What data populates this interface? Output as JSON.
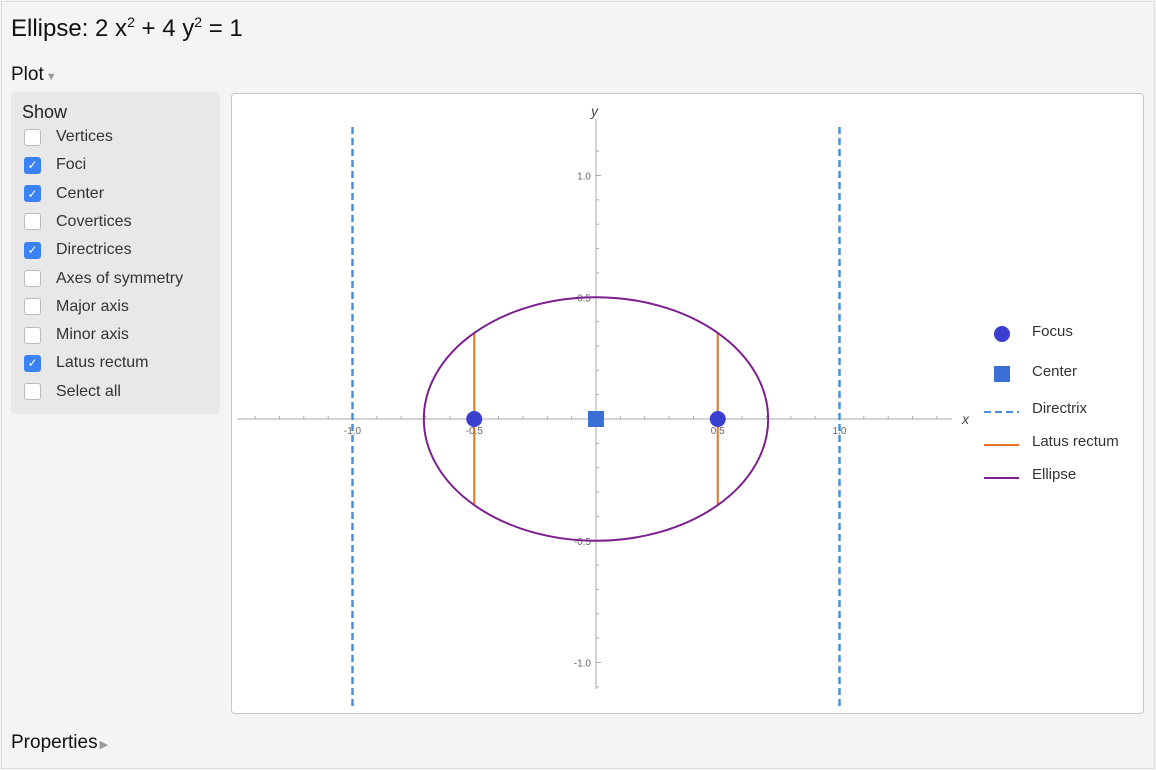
{
  "title": {
    "prefix": "Ellipse: 2 x",
    "exp1": "2",
    "mid": " + 4 y",
    "exp2": "2",
    "suffix": " = 1"
  },
  "sections": {
    "plot": "Plot",
    "properties": "Properties"
  },
  "show": {
    "header": "Show",
    "options": [
      {
        "label": "Vertices",
        "checked": false
      },
      {
        "label": "Foci",
        "checked": true
      },
      {
        "label": "Center",
        "checked": true
      },
      {
        "label": "Covertices",
        "checked": false
      },
      {
        "label": "Directrices",
        "checked": true
      },
      {
        "label": "Axes of symmetry",
        "checked": false
      },
      {
        "label": "Major axis",
        "checked": false
      },
      {
        "label": "Minor axis",
        "checked": false
      },
      {
        "label": "Latus rectum",
        "checked": true
      },
      {
        "label": "Select all",
        "checked": false
      }
    ]
  },
  "chart_data": {
    "type": "scatter",
    "xlabel": "x",
    "ylabel": "y",
    "xlim": [
      -1.5,
      1.5
    ],
    "ylim": [
      -1.2,
      1.2
    ],
    "xticks": [
      "-1.0",
      "-0.5",
      "0.5",
      "1.0"
    ],
    "yticks": [
      "1.0",
      "0.5",
      "-0.5",
      "-1.0"
    ],
    "ellipse": {
      "a": 0.7071,
      "b": 0.5,
      "center": [
        0,
        0
      ]
    },
    "foci": [
      [
        -0.5,
        0
      ],
      [
        0.5,
        0
      ]
    ],
    "center": [
      0,
      0
    ],
    "directrices": [
      -1,
      1
    ],
    "latus_rectum": {
      "x": [
        -0.5,
        0.5
      ],
      "half_length": 0.3536
    },
    "legend": [
      {
        "name": "Focus",
        "color": "#3b3fcf"
      },
      {
        "name": "Center",
        "color": "#3c6fd6"
      },
      {
        "name": "Directrix",
        "color": "#4a90d9"
      },
      {
        "name": "Latus rectum",
        "color": "#e8731e"
      },
      {
        "name": "Ellipse",
        "color": "#7b1f8f"
      }
    ],
    "legend_position": "right"
  }
}
